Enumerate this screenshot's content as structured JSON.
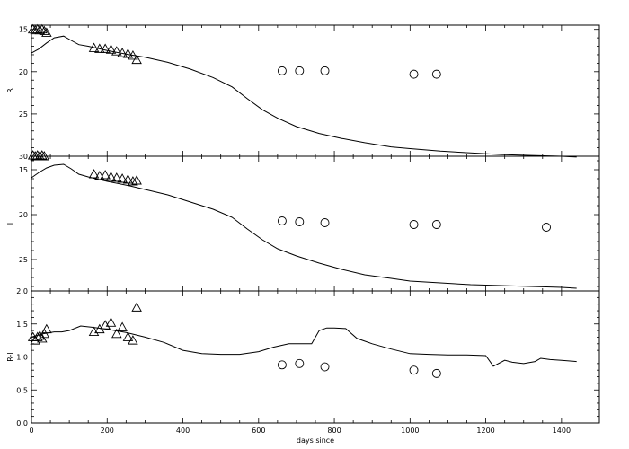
{
  "chart_data": [
    {
      "type": "scatter",
      "ylabel": "R",
      "xlim": [
        0,
        1500
      ],
      "ylim": [
        30,
        14.5
      ],
      "y_inverted": true,
      "yticks": [
        15,
        20,
        25,
        30
      ],
      "x_tick_labels_shown": false,
      "series": [
        {
          "marker": "line",
          "x": [
            0,
            20,
            40,
            60,
            85,
            105,
            125,
            150,
            200,
            260,
            300,
            360,
            420,
            480,
            530,
            570,
            610,
            650,
            700,
            760,
            820,
            880,
            950,
            1000,
            1080,
            1160,
            1240,
            1320,
            1400,
            1440
          ],
          "y": [
            17.8,
            17.3,
            16.6,
            16.0,
            15.8,
            16.3,
            16.8,
            17.0,
            17.5,
            18.0,
            18.3,
            18.9,
            19.7,
            20.7,
            21.8,
            23.2,
            24.5,
            25.5,
            26.5,
            27.3,
            27.9,
            28.4,
            28.9,
            29.1,
            29.4,
            29.6,
            29.8,
            29.9,
            30.0,
            30.1
          ]
        },
        {
          "marker": "triangle",
          "x": [
            4,
            10,
            16,
            22,
            28,
            34,
            40,
            165,
            180,
            195,
            210,
            225,
            240,
            255,
            268,
            278
          ],
          "y": [
            15.0,
            15.1,
            15.0,
            15.1,
            15.0,
            15.2,
            15.4,
            17.2,
            17.3,
            17.3,
            17.4,
            17.6,
            17.8,
            17.9,
            18.1,
            18.6
          ]
        },
        {
          "marker": "circle",
          "x": [
            662,
            708,
            775,
            1010,
            1070
          ],
          "y": [
            19.9,
            19.9,
            19.9,
            20.3,
            20.3
          ]
        }
      ]
    },
    {
      "type": "scatter",
      "ylabel": "I",
      "xlim": [
        0,
        1500
      ],
      "ylim": [
        28.5,
        13.5
      ],
      "y_inverted": true,
      "yticks": [
        15,
        20,
        25
      ],
      "x_tick_labels_shown": false,
      "series": [
        {
          "marker": "line",
          "x": [
            0,
            20,
            40,
            60,
            85,
            105,
            125,
            150,
            200,
            260,
            300,
            360,
            420,
            480,
            530,
            570,
            610,
            650,
            700,
            760,
            820,
            880,
            950,
            1000,
            1080,
            1160,
            1240,
            1320,
            1400,
            1440
          ],
          "y": [
            15.9,
            15.3,
            14.8,
            14.5,
            14.4,
            14.9,
            15.5,
            15.8,
            16.3,
            16.8,
            17.2,
            17.8,
            18.6,
            19.4,
            20.3,
            21.6,
            22.8,
            23.8,
            24.6,
            25.4,
            26.1,
            26.7,
            27.1,
            27.4,
            27.6,
            27.8,
            27.9,
            28.0,
            28.1,
            28.2
          ]
        },
        {
          "marker": "triangle",
          "x": [
            4,
            10,
            16,
            22,
            28,
            34,
            165,
            180,
            195,
            210,
            225,
            240,
            255,
            268,
            278
          ],
          "y": [
            13.4,
            13.5,
            13.4,
            13.5,
            13.4,
            13.5,
            15.5,
            15.7,
            15.6,
            15.8,
            15.9,
            16.0,
            16.1,
            16.3,
            16.2
          ]
        },
        {
          "marker": "circle",
          "x": [
            662,
            708,
            775,
            1010,
            1070,
            1360
          ],
          "y": [
            20.7,
            20.8,
            20.9,
            21.1,
            21.1,
            21.4
          ]
        }
      ]
    },
    {
      "type": "scatter",
      "ylabel": "R-I",
      "xlabel": "days since",
      "xlim": [
        0,
        1500
      ],
      "ylim": [
        0.0,
        2.0
      ],
      "yticks": [
        0.0,
        0.5,
        1.0,
        1.5,
        2.0
      ],
      "ytick_labels": [
        "0.0",
        "0.5",
        "1.0",
        "1.5",
        "2.0"
      ],
      "xticks": [
        0,
        200,
        400,
        600,
        800,
        1000,
        1200,
        1400
      ],
      "series": [
        {
          "marker": "line",
          "x": [
            0,
            30,
            60,
            80,
            100,
            130,
            160,
            200,
            250,
            300,
            350,
            400,
            450,
            500,
            550,
            600,
            640,
            680,
            700,
            740,
            760,
            780,
            800,
            830,
            860,
            900,
            950,
            1000,
            1050,
            1100,
            1150,
            1200,
            1220,
            1250,
            1270,
            1300,
            1330,
            1345,
            1370,
            1400,
            1440
          ],
          "y": [
            1.3,
            1.35,
            1.38,
            1.38,
            1.4,
            1.47,
            1.45,
            1.42,
            1.37,
            1.3,
            1.22,
            1.1,
            1.05,
            1.04,
            1.04,
            1.08,
            1.15,
            1.2,
            1.2,
            1.2,
            1.4,
            1.44,
            1.44,
            1.43,
            1.28,
            1.2,
            1.12,
            1.05,
            1.04,
            1.03,
            1.03,
            1.02,
            0.86,
            0.95,
            0.92,
            0.9,
            0.93,
            0.98,
            0.96,
            0.95,
            0.93
          ]
        },
        {
          "marker": "triangle",
          "x": [
            4,
            10,
            16,
            22,
            28,
            34,
            40,
            165,
            180,
            195,
            210,
            225,
            240,
            255,
            268,
            278
          ],
          "y": [
            1.3,
            1.25,
            1.3,
            1.32,
            1.28,
            1.35,
            1.42,
            1.38,
            1.42,
            1.48,
            1.52,
            1.35,
            1.45,
            1.3,
            1.25,
            1.75
          ]
        },
        {
          "marker": "circle",
          "x": [
            662,
            708,
            775,
            1010,
            1070
          ],
          "y": [
            0.88,
            0.9,
            0.85,
            0.8,
            0.75
          ]
        }
      ]
    }
  ]
}
